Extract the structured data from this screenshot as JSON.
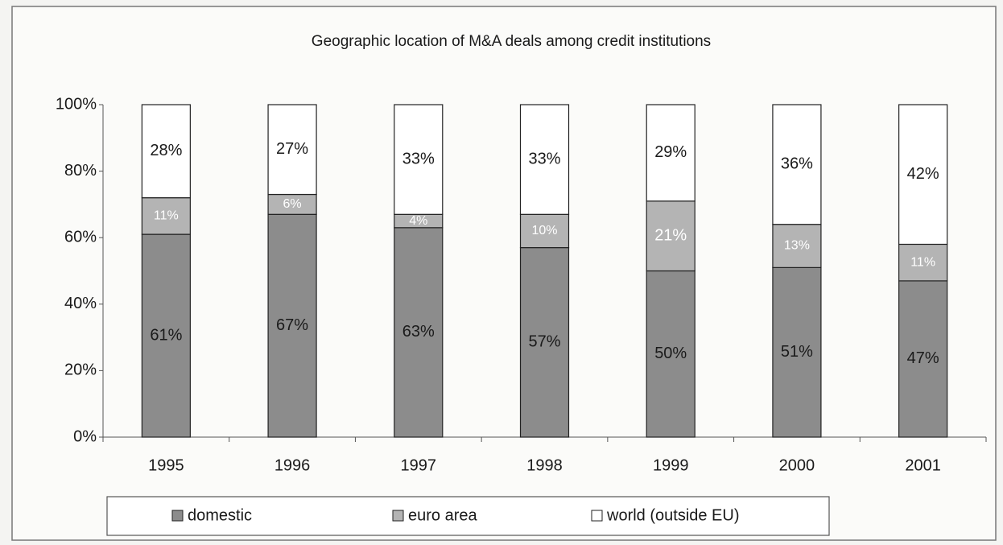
{
  "chart_data": {
    "type": "stacked_bar",
    "title": "Geographic location of M&A deals among credit institutions",
    "categories": [
      "1995",
      "1996",
      "1997",
      "1998",
      "1999",
      "2000",
      "2001"
    ],
    "series": [
      {
        "name": "domestic",
        "color": "#8c8c8c",
        "values": [
          61,
          67,
          63,
          57,
          50,
          51,
          47
        ],
        "value_labels": [
          "61%",
          "67%",
          "63%",
          "57%",
          "50%",
          "51%",
          "47%"
        ]
      },
      {
        "name": "euro area",
        "color": "#b4b4b4",
        "values": [
          11,
          6,
          4,
          10,
          21,
          13,
          11
        ],
        "value_labels": [
          "11%",
          "6%",
          "4%",
          "10%",
          "21%",
          "13%",
          "11%"
        ]
      },
      {
        "name": "world (outside EU)",
        "color": "#ffffff",
        "values": [
          28,
          27,
          33,
          33,
          29,
          36,
          42
        ],
        "value_labels": [
          "28%",
          "27%",
          "33%",
          "33%",
          "29%",
          "36%",
          "42%"
        ]
      }
    ],
    "ylim": [
      0,
      100
    ],
    "yticks": [
      {
        "value": 0,
        "label": "0%"
      },
      {
        "value": 20,
        "label": "20%"
      },
      {
        "value": 40,
        "label": "40%"
      },
      {
        "value": 60,
        "label": "60%"
      },
      {
        "value": 80,
        "label": "80%"
      },
      {
        "value": 100,
        "label": "100%"
      }
    ],
    "legend": "bottom"
  }
}
